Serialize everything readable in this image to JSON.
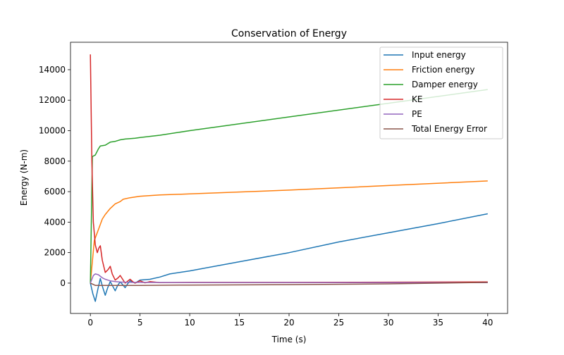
{
  "chart_data": {
    "type": "line",
    "title": "Conservation of Energy",
    "xlabel": "Time (s)",
    "ylabel": "Energy (N-m)",
    "xlim": [
      -2,
      42
    ],
    "ylim": [
      -1990,
      15800
    ],
    "xticks": [
      0,
      5,
      10,
      15,
      20,
      25,
      30,
      35,
      40
    ],
    "yticks": [
      0,
      2000,
      4000,
      6000,
      8000,
      10000,
      12000,
      14000
    ],
    "grid": false,
    "legend_position": "top-right",
    "series": [
      {
        "name": "Input energy",
        "color": "#1f77b4",
        "x": [
          0,
          0.25,
          0.5,
          0.75,
          1.0,
          1.25,
          1.5,
          1.75,
          2,
          2.25,
          2.5,
          2.75,
          3,
          3.25,
          3.5,
          3.75,
          4,
          4.5,
          5,
          6,
          7,
          8,
          10,
          15,
          20,
          25,
          30,
          35,
          40
        ],
        "y": [
          0,
          -700,
          -1200,
          -400,
          300,
          -300,
          -800,
          -300,
          100,
          -200,
          -500,
          -150,
          80,
          -100,
          -300,
          -50,
          150,
          0,
          200,
          250,
          400,
          600,
          800,
          1400,
          2000,
          2700,
          3300,
          3900,
          4550
        ]
      },
      {
        "name": "Friction energy",
        "color": "#ff7f0e",
        "x": [
          0,
          0.4,
          0.8,
          1.2,
          1.5,
          2,
          2.5,
          3,
          3.3,
          4,
          5,
          7,
          10,
          20,
          30,
          40
        ],
        "y": [
          0,
          2800,
          3500,
          4200,
          4500,
          4900,
          5200,
          5350,
          5500,
          5600,
          5700,
          5780,
          5850,
          6100,
          6400,
          6700
        ]
      },
      {
        "name": "Damper energy",
        "color": "#2ca02c",
        "x": [
          0,
          0.2,
          0.5,
          0.8,
          1.0,
          1.5,
          2,
          2.5,
          3,
          3.5,
          4.5,
          5,
          7,
          10,
          20,
          30,
          40
        ],
        "y": [
          0,
          8300,
          8400,
          8800,
          9000,
          9050,
          9250,
          9300,
          9400,
          9450,
          9500,
          9550,
          9700,
          10000,
          10900,
          11800,
          12700
        ]
      },
      {
        "name": "KE",
        "color": "#d62728",
        "x": [
          0,
          0.15,
          0.3,
          0.5,
          0.7,
          0.85,
          1.0,
          1.2,
          1.5,
          1.8,
          2.0,
          2.2,
          2.5,
          2.8,
          3,
          3.3,
          3.5,
          3.8,
          4,
          4.3,
          4.5,
          5,
          5.5,
          6,
          7,
          10,
          20,
          30,
          40
        ],
        "y": [
          15000,
          8000,
          4000,
          2500,
          2000,
          2300,
          2450,
          1500,
          700,
          900,
          1100,
          600,
          200,
          350,
          500,
          200,
          0,
          150,
          250,
          80,
          0,
          150,
          20,
          100,
          30,
          50,
          50,
          60,
          80
        ]
      },
      {
        "name": "PE",
        "color": "#9467bd",
        "x": [
          0,
          0.3,
          0.5,
          0.8,
          1.2,
          1.5,
          2,
          2.5,
          3,
          4,
          10,
          40
        ],
        "y": [
          0,
          500,
          600,
          550,
          350,
          250,
          150,
          100,
          70,
          50,
          40,
          30
        ]
      },
      {
        "name": "Total Energy Error",
        "color": "#8c564b",
        "x": [
          0,
          0.5,
          1,
          5,
          10,
          20,
          30,
          40
        ],
        "y": [
          0,
          -150,
          -150,
          -150,
          -130,
          -100,
          -50,
          50
        ]
      }
    ]
  }
}
